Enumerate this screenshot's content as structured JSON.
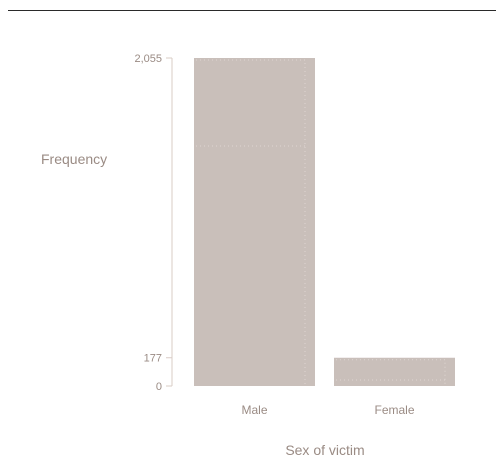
{
  "chart_data": {
    "type": "bar",
    "title": "",
    "xlabel": "Sex of victim",
    "ylabel": "Frequency",
    "categories": [
      "Male",
      "Female"
    ],
    "values": [
      2055,
      177
    ],
    "yticks": [
      0,
      177,
      2055
    ],
    "ytick_labels": [
      "0",
      "177",
      "2,055"
    ],
    "ylim": [
      0,
      2055
    ],
    "grid": false,
    "legend": "none",
    "colors": {
      "bar": "#c9bfba",
      "axis": "#d8ccc6",
      "text": "#9a8b84",
      "dotted": "#ded6d2"
    }
  }
}
